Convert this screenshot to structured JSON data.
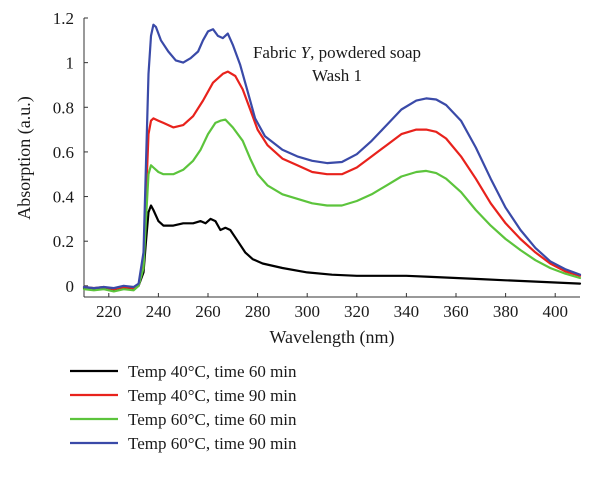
{
  "chart_data": {
    "type": "line",
    "annotation": {
      "line1_prefix": "Fabric ",
      "line1_italic": "Y",
      "line1_suffix": ", powdered soap",
      "line2": "Wash 1"
    },
    "xlabel": "Wavelength (nm)",
    "ylabel": "Absorption (a.u.)",
    "xlim": [
      210,
      410
    ],
    "ylim": [
      -0.05,
      1.2
    ],
    "x_ticks": [
      220,
      240,
      260,
      280,
      300,
      320,
      340,
      360,
      380,
      400
    ],
    "y_ticks": [
      0,
      0.2,
      0.4,
      0.6,
      0.8,
      1,
      1.2
    ],
    "y_tick_labels": [
      "0",
      "0.2",
      "0.4",
      "0.6",
      "0.8",
      "1",
      "1.2"
    ],
    "grid": false,
    "legend_position": "below",
    "series": [
      {
        "name": "Temp 40°C, time 60 min",
        "color": "#000000",
        "points": [
          [
            210,
            -0.01
          ],
          [
            214,
            -0.015
          ],
          [
            218,
            -0.01
          ],
          [
            222,
            -0.02
          ],
          [
            226,
            -0.01
          ],
          [
            230,
            -0.015
          ],
          [
            232,
            0.0
          ],
          [
            234,
            0.06
          ],
          [
            235,
            0.2
          ],
          [
            236,
            0.33
          ],
          [
            237,
            0.36
          ],
          [
            238,
            0.34
          ],
          [
            240,
            0.29
          ],
          [
            242,
            0.27
          ],
          [
            246,
            0.27
          ],
          [
            250,
            0.28
          ],
          [
            254,
            0.28
          ],
          [
            257,
            0.29
          ],
          [
            259,
            0.28
          ],
          [
            261,
            0.3
          ],
          [
            263,
            0.29
          ],
          [
            265,
            0.25
          ],
          [
            267,
            0.26
          ],
          [
            269,
            0.25
          ],
          [
            272,
            0.2
          ],
          [
            275,
            0.15
          ],
          [
            278,
            0.12
          ],
          [
            282,
            0.1
          ],
          [
            290,
            0.08
          ],
          [
            300,
            0.06
          ],
          [
            310,
            0.05
          ],
          [
            320,
            0.045
          ],
          [
            330,
            0.045
          ],
          [
            340,
            0.045
          ],
          [
            350,
            0.04
          ],
          [
            360,
            0.035
          ],
          [
            370,
            0.03
          ],
          [
            380,
            0.025
          ],
          [
            390,
            0.02
          ],
          [
            400,
            0.015
          ],
          [
            410,
            0.01
          ]
        ]
      },
      {
        "name": "Temp 40°C, time 90 min",
        "color": "#e8221c",
        "points": [
          [
            210,
            -0.005
          ],
          [
            214,
            -0.01
          ],
          [
            218,
            -0.005
          ],
          [
            222,
            -0.015
          ],
          [
            226,
            -0.005
          ],
          [
            230,
            -0.01
          ],
          [
            232,
            0.0
          ],
          [
            234,
            0.1
          ],
          [
            235,
            0.4
          ],
          [
            236,
            0.68
          ],
          [
            237,
            0.74
          ],
          [
            238,
            0.75
          ],
          [
            240,
            0.74
          ],
          [
            242,
            0.73
          ],
          [
            246,
            0.71
          ],
          [
            250,
            0.72
          ],
          [
            254,
            0.76
          ],
          [
            258,
            0.83
          ],
          [
            262,
            0.91
          ],
          [
            266,
            0.95
          ],
          [
            268,
            0.96
          ],
          [
            271,
            0.94
          ],
          [
            274,
            0.88
          ],
          [
            277,
            0.79
          ],
          [
            280,
            0.7
          ],
          [
            284,
            0.63
          ],
          [
            290,
            0.57
          ],
          [
            296,
            0.54
          ],
          [
            302,
            0.51
          ],
          [
            308,
            0.5
          ],
          [
            314,
            0.5
          ],
          [
            320,
            0.53
          ],
          [
            326,
            0.58
          ],
          [
            332,
            0.63
          ],
          [
            338,
            0.68
          ],
          [
            344,
            0.7
          ],
          [
            348,
            0.7
          ],
          [
            352,
            0.69
          ],
          [
            356,
            0.66
          ],
          [
            362,
            0.58
          ],
          [
            368,
            0.48
          ],
          [
            374,
            0.37
          ],
          [
            380,
            0.28
          ],
          [
            386,
            0.21
          ],
          [
            392,
            0.15
          ],
          [
            398,
            0.1
          ],
          [
            404,
            0.065
          ],
          [
            410,
            0.045
          ]
        ]
      },
      {
        "name": "Temp 60°C, time 60 min",
        "color": "#5cc43c",
        "points": [
          [
            210,
            -0.015
          ],
          [
            214,
            -0.02
          ],
          [
            218,
            -0.015
          ],
          [
            222,
            -0.025
          ],
          [
            226,
            -0.015
          ],
          [
            230,
            -0.02
          ],
          [
            232,
            0.0
          ],
          [
            234,
            0.08
          ],
          [
            235,
            0.3
          ],
          [
            236,
            0.5
          ],
          [
            237,
            0.54
          ],
          [
            238,
            0.53
          ],
          [
            240,
            0.51
          ],
          [
            242,
            0.5
          ],
          [
            246,
            0.5
          ],
          [
            250,
            0.52
          ],
          [
            254,
            0.56
          ],
          [
            257,
            0.61
          ],
          [
            260,
            0.68
          ],
          [
            263,
            0.73
          ],
          [
            265,
            0.74
          ],
          [
            267,
            0.745
          ],
          [
            270,
            0.71
          ],
          [
            274,
            0.65
          ],
          [
            277,
            0.57
          ],
          [
            280,
            0.5
          ],
          [
            284,
            0.45
          ],
          [
            290,
            0.41
          ],
          [
            296,
            0.39
          ],
          [
            302,
            0.37
          ],
          [
            308,
            0.36
          ],
          [
            314,
            0.36
          ],
          [
            320,
            0.38
          ],
          [
            326,
            0.41
          ],
          [
            332,
            0.45
          ],
          [
            338,
            0.49
          ],
          [
            344,
            0.51
          ],
          [
            348,
            0.515
          ],
          [
            352,
            0.505
          ],
          [
            356,
            0.48
          ],
          [
            362,
            0.42
          ],
          [
            368,
            0.34
          ],
          [
            374,
            0.27
          ],
          [
            380,
            0.21
          ],
          [
            386,
            0.16
          ],
          [
            392,
            0.115
          ],
          [
            398,
            0.08
          ],
          [
            404,
            0.055
          ],
          [
            410,
            0.035
          ]
        ]
      },
      {
        "name": "Temp 60°C, time 90 min",
        "color": "#3a4aa8",
        "points": [
          [
            210,
            -0.005
          ],
          [
            214,
            -0.01
          ],
          [
            218,
            -0.005
          ],
          [
            222,
            -0.01
          ],
          [
            226,
            0.0
          ],
          [
            230,
            -0.005
          ],
          [
            232,
            0.01
          ],
          [
            234,
            0.15
          ],
          [
            235,
            0.55
          ],
          [
            236,
            0.95
          ],
          [
            237,
            1.12
          ],
          [
            238,
            1.17
          ],
          [
            239,
            1.16
          ],
          [
            241,
            1.1
          ],
          [
            244,
            1.05
          ],
          [
            247,
            1.01
          ],
          [
            250,
            1.0
          ],
          [
            253,
            1.02
          ],
          [
            256,
            1.05
          ],
          [
            258,
            1.1
          ],
          [
            260,
            1.14
          ],
          [
            262,
            1.15
          ],
          [
            264,
            1.12
          ],
          [
            266,
            1.11
          ],
          [
            268,
            1.13
          ],
          [
            270,
            1.08
          ],
          [
            273,
            0.99
          ],
          [
            276,
            0.87
          ],
          [
            279,
            0.75
          ],
          [
            283,
            0.67
          ],
          [
            290,
            0.61
          ],
          [
            296,
            0.58
          ],
          [
            302,
            0.56
          ],
          [
            308,
            0.55
          ],
          [
            314,
            0.555
          ],
          [
            320,
            0.59
          ],
          [
            326,
            0.65
          ],
          [
            332,
            0.72
          ],
          [
            338,
            0.79
          ],
          [
            344,
            0.83
          ],
          [
            348,
            0.84
          ],
          [
            352,
            0.835
          ],
          [
            356,
            0.81
          ],
          [
            362,
            0.74
          ],
          [
            368,
            0.62
          ],
          [
            374,
            0.48
          ],
          [
            380,
            0.35
          ],
          [
            386,
            0.25
          ],
          [
            392,
            0.17
          ],
          [
            398,
            0.11
          ],
          [
            404,
            0.075
          ],
          [
            410,
            0.05
          ]
        ]
      }
    ]
  }
}
